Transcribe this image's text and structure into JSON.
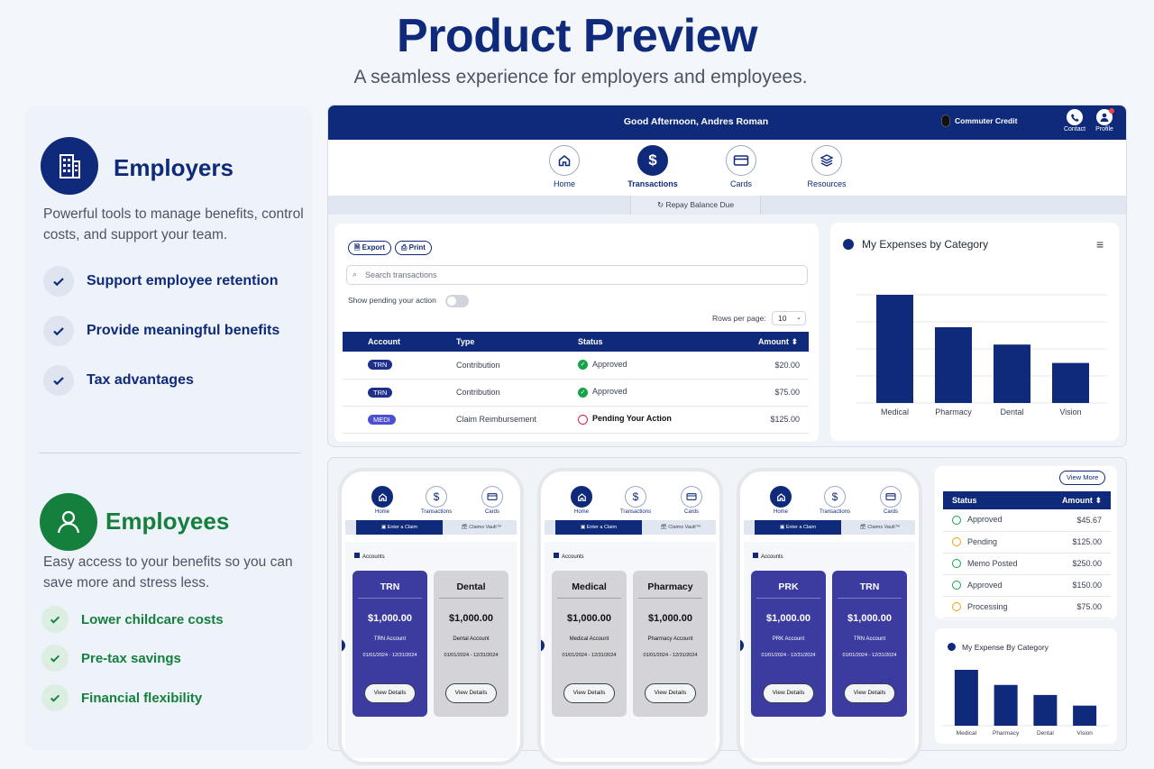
{
  "header": {
    "title": "Product Preview",
    "subtitle": "A seamless experience for employers and employees."
  },
  "employers": {
    "heading": "Employers",
    "description": "Powerful tools to manage benefits, control costs, and support your team.",
    "features": [
      "Support employee retention",
      "Provide meaningful benefits",
      "Tax advantages"
    ]
  },
  "employees": {
    "heading": "Employees",
    "description": "Easy access to your benefits so you can save more and stress less.",
    "features": [
      "Lower childcare costs",
      "Pre-tax savings",
      "Financial flexibility"
    ]
  },
  "app": {
    "greeting": "Good Afternoon, Andres Roman",
    "commuter": "Commuter Credit",
    "contact": "Contact",
    "profile": "Profile",
    "nav": [
      "Home",
      "Transactions",
      "Cards",
      "Resources"
    ],
    "repay": "Repay Balance Due",
    "export": "Export",
    "print": "Print",
    "search_placeholder": "Search transactions",
    "pending_toggle": "Show pending your action",
    "rows_label": "Rows per page:",
    "rows_value": "10",
    "columns": [
      "Account",
      "Type",
      "Status",
      "Amount"
    ],
    "rows": [
      {
        "account": "TRN",
        "type": "Contribution",
        "status": "Approved",
        "amount": "$20.00"
      },
      {
        "account": "TRN",
        "type": "Contribution",
        "status": "Approved",
        "amount": "$75.00"
      },
      {
        "account": "MEDI",
        "type": "Claim Reimbursement",
        "status": "Pending Your Action",
        "amount": "$125.00"
      }
    ],
    "chart_title": "My Expenses by Category"
  },
  "mobile": {
    "nav": [
      "Home",
      "Transactions",
      "Cards"
    ],
    "tabs": [
      "Enter a Claim",
      "Claims Vault™"
    ],
    "accounts_label": "Accounts",
    "view_details": "View Details",
    "phones": [
      [
        {
          "name": "TRN",
          "amount": "$1,000.00",
          "account": "TRN Account",
          "dates": "01/01/2024 - 12/31/2024",
          "style": "blue"
        },
        {
          "name": "Dental",
          "amount": "$1,000.00",
          "account": "Dental Account",
          "dates": "01/01/2024 - 12/31/2024",
          "style": "gray"
        }
      ],
      [
        {
          "name": "Medical",
          "amount": "$1,000.00",
          "account": "Medical Account",
          "dates": "01/01/2024 - 12/31/2024",
          "style": "gray"
        },
        {
          "name": "Pharmacy",
          "amount": "$1,000.00",
          "account": "Pharmacy Account",
          "dates": "01/01/2024 - 12/31/2024",
          "style": "gray"
        }
      ],
      [
        {
          "name": "PRK",
          "amount": "$1,000.00",
          "account": "PRK Account",
          "dates": "01/01/2024 - 12/31/2024",
          "style": "blue"
        },
        {
          "name": "TRN",
          "amount": "$1,000.00",
          "account": "TRN Account",
          "dates": "01/01/2024 - 12/31/2024",
          "style": "blue"
        }
      ]
    ]
  },
  "status_panel": {
    "view_more": "View More",
    "columns": [
      "Status",
      "Amount"
    ],
    "rows": [
      {
        "status": "Approved",
        "amount": "$45.67",
        "color": "#16a34a"
      },
      {
        "status": "Pending",
        "amount": "$125.00",
        "color": "#f59e0b"
      },
      {
        "status": "Memo Posted",
        "amount": "$250.00",
        "color": "#16a34a"
      },
      {
        "status": "Approved",
        "amount": "$150.00",
        "color": "#16a34a"
      },
      {
        "status": "Processing",
        "amount": "$75.00",
        "color": "#f59e0b"
      }
    ],
    "chart_title": "My Expense By Category"
  },
  "colors": {
    "brand": "#0f2a7a",
    "employees_green": "#15803d"
  },
  "chart_data": [
    {
      "type": "bar",
      "title": "My Expenses by Category",
      "categories": [
        "Medical",
        "Pharmacy",
        "Dental",
        "Vision"
      ],
      "values": [
        100,
        70,
        54,
        37
      ],
      "grid": true
    },
    {
      "type": "bar",
      "title": "My Expense By Category",
      "categories": [
        "Medical",
        "Pharmacy",
        "Dental",
        "Vision"
      ],
      "values": [
        100,
        73,
        55,
        36
      ],
      "grid": false
    }
  ]
}
